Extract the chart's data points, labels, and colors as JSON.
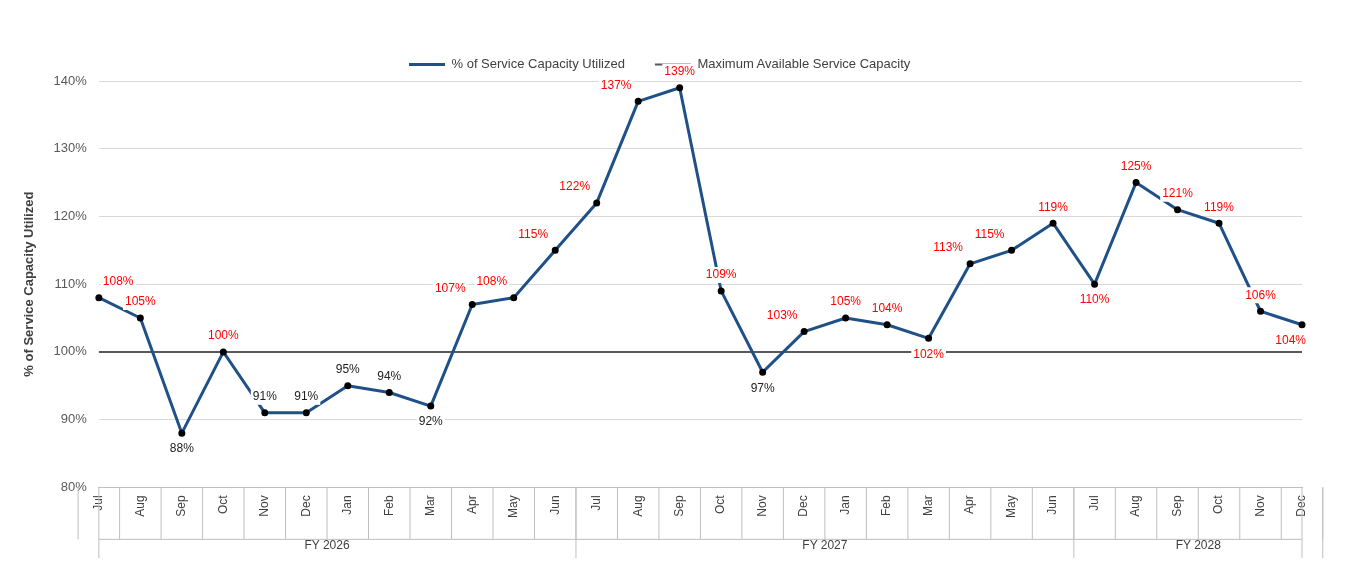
{
  "chart_data": {
    "type": "line",
    "ylabel": "% of Service Capacity Utilized",
    "categories": [
      "Jul",
      "Aug",
      "Sep",
      "Oct",
      "Nov",
      "Dec",
      "Jan",
      "Feb",
      "Mar",
      "Apr",
      "May",
      "Jun",
      "Jul",
      "Aug",
      "Sep",
      "Oct",
      "Nov",
      "Dec",
      "Jan",
      "Feb",
      "Mar",
      "Apr",
      "May",
      "Jun",
      "Jul",
      "Aug",
      "Sep",
      "Oct",
      "Nov",
      "Dec"
    ],
    "series": [
      {
        "name": "% of Service Capacity Utilized",
        "color": "#1f5188",
        "values": [
          108,
          105,
          88,
          100,
          91,
          91,
          95,
          94,
          92,
          107,
          108,
          115,
          122,
          137,
          139,
          109,
          97,
          103,
          105,
          104,
          102,
          113,
          115,
          119,
          110,
          125,
          121,
          119,
          106,
          104
        ],
        "value_labels": [
          "108%",
          "105%",
          "88%",
          "100%",
          "91%",
          "91%",
          "95%",
          "94%",
          "92%",
          "107%",
          "108%",
          "115%",
          "122%",
          "137%",
          "139%",
          "109%",
          "97%",
          "103%",
          "105%",
          "104%",
          "102%",
          "113%",
          "115%",
          "119%",
          "110%",
          "125%",
          "121%",
          "119%",
          "106%",
          "104%"
        ]
      }
    ],
    "ref_lines": [
      {
        "axis": "y",
        "value": 100,
        "label": "Maximum Available Service Capacity",
        "color": "#595959"
      }
    ],
    "annotations": [
      "FY 2026",
      "FY 2027",
      "FY 2028"
    ],
    "ylim": [
      80,
      140
    ],
    "yticks": [
      {
        "value": 80,
        "label": "80%"
      },
      {
        "value": 90,
        "label": "90%"
      },
      {
        "value": 100,
        "label": "100%"
      },
      {
        "value": 110,
        "label": "110%"
      },
      {
        "value": 120,
        "label": "120%"
      },
      {
        "value": 130,
        "label": "130%"
      },
      {
        "value": 140,
        "label": "140%"
      }
    ],
    "grid": "y",
    "legend": "top",
    "marker": "circle",
    "line_style": "solid"
  }
}
